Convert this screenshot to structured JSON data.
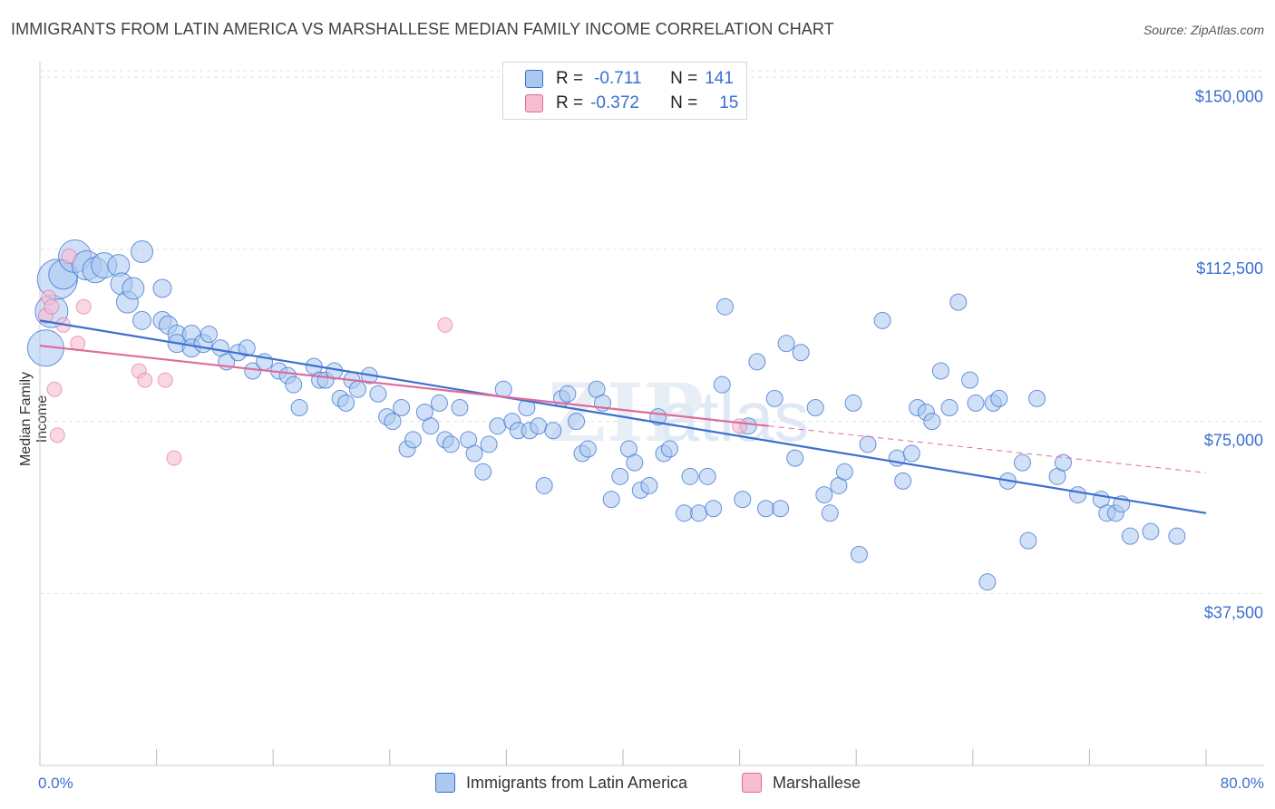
{
  "title": "IMMIGRANTS FROM LATIN AMERICA VS MARSHALLESE MEDIAN FAMILY INCOME CORRELATION CHART",
  "source": "Source: ZipAtlas.com",
  "legend": {
    "row1": {
      "r_label": "R =",
      "r_value": "-0.711",
      "n_label": "N =",
      "n_value": "141"
    },
    "row2": {
      "r_label": "R =",
      "r_value": "-0.372",
      "n_label": "N =",
      "n_value": "15"
    }
  },
  "bottom_legend": {
    "s1": "Immigrants from Latin America",
    "s2": "Marshallese"
  },
  "x_tick_min": "0.0%",
  "x_tick_max": "80.0%",
  "colors": {
    "blue": "#3b6fd0",
    "blue_fill": "#aac8f0",
    "pink": "#e06a9a",
    "pink_fill": "#f6bcd0",
    "grid": "#e0e0e0"
  },
  "chart_data": {
    "type": "scatter",
    "title": "IMMIGRANTS FROM LATIN AMERICA VS MARSHALLESE MEDIAN FAMILY INCOME CORRELATION CHART",
    "xlabel": "",
    "ylabel": "Median Family Income",
    "xlim": [
      0,
      80
    ],
    "ylim": [
      0,
      155000
    ],
    "y_ticks": [
      {
        "v": 37500,
        "label": "$37,500"
      },
      {
        "v": 75000,
        "label": "$75,000"
      },
      {
        "v": 112500,
        "label": "$112,500"
      },
      {
        "v": 150000,
        "label": "$150,000"
      }
    ],
    "series": [
      {
        "name": "Immigrants from Latin America",
        "r": -0.711,
        "n": 141,
        "trend": {
          "x0": 0,
          "y0": 97000,
          "x1": 80,
          "y1": 55000
        },
        "points": [
          [
            0.4,
            91000,
            20
          ],
          [
            0.8,
            99000,
            18
          ],
          [
            1.2,
            106000,
            22
          ],
          [
            1.6,
            107000,
            16
          ],
          [
            2.4,
            111000,
            18
          ],
          [
            3.2,
            109000,
            16
          ],
          [
            3.8,
            108000,
            14
          ],
          [
            4.4,
            109000,
            14
          ],
          [
            5.4,
            109000,
            12
          ],
          [
            5.6,
            105000,
            12
          ],
          [
            6.0,
            101000,
            12
          ],
          [
            6.4,
            104000,
            12
          ],
          [
            7.0,
            112000,
            12
          ],
          [
            7.0,
            97000,
            10
          ],
          [
            8.4,
            97000,
            10
          ],
          [
            8.4,
            104000,
            10
          ],
          [
            8.8,
            96000,
            10
          ],
          [
            9.4,
            94000,
            10
          ],
          [
            9.4,
            92000,
            10
          ],
          [
            10.4,
            94000,
            10
          ],
          [
            10.4,
            91000,
            10
          ],
          [
            11.2,
            92000,
            10
          ],
          [
            11.6,
            94000,
            9
          ],
          [
            12.4,
            91000,
            9
          ],
          [
            12.8,
            88000,
            9
          ],
          [
            13.6,
            90000,
            9
          ],
          [
            14.2,
            91000,
            9
          ],
          [
            14.6,
            86000,
            9
          ],
          [
            15.4,
            88000,
            9
          ],
          [
            16.4,
            86000,
            9
          ],
          [
            17.0,
            85000,
            9
          ],
          [
            17.4,
            83000,
            9
          ],
          [
            17.8,
            78000,
            9
          ],
          [
            18.8,
            87000,
            9
          ],
          [
            19.2,
            84000,
            9
          ],
          [
            19.6,
            84000,
            9
          ],
          [
            20.2,
            86000,
            9
          ],
          [
            20.6,
            80000,
            9
          ],
          [
            21.0,
            79000,
            9
          ],
          [
            21.4,
            84000,
            9
          ],
          [
            21.8,
            82000,
            9
          ],
          [
            22.6,
            85000,
            9
          ],
          [
            23.2,
            81000,
            9
          ],
          [
            23.8,
            76000,
            9
          ],
          [
            24.2,
            75000,
            9
          ],
          [
            24.8,
            78000,
            9
          ],
          [
            25.2,
            69000,
            9
          ],
          [
            25.6,
            71000,
            9
          ],
          [
            26.4,
            77000,
            9
          ],
          [
            26.8,
            74000,
            9
          ],
          [
            27.4,
            79000,
            9
          ],
          [
            27.8,
            71000,
            9
          ],
          [
            28.2,
            70000,
            9
          ],
          [
            28.8,
            78000,
            9
          ],
          [
            29.4,
            71000,
            9
          ],
          [
            29.8,
            68000,
            9
          ],
          [
            30.4,
            64000,
            9
          ],
          [
            30.8,
            70000,
            9
          ],
          [
            31.4,
            74000,
            9
          ],
          [
            31.8,
            82000,
            9
          ],
          [
            32.4,
            75000,
            9
          ],
          [
            32.8,
            73000,
            9
          ],
          [
            33.4,
            78000,
            9
          ],
          [
            33.6,
            73000,
            9
          ],
          [
            34.2,
            74000,
            9
          ],
          [
            34.6,
            61000,
            9
          ],
          [
            35.2,
            73000,
            9
          ],
          [
            35.8,
            80000,
            9
          ],
          [
            36.2,
            81000,
            9
          ],
          [
            36.8,
            75000,
            9
          ],
          [
            37.2,
            68000,
            9
          ],
          [
            37.6,
            69000,
            9
          ],
          [
            38.2,
            82000,
            9
          ],
          [
            38.6,
            79000,
            9
          ],
          [
            39.2,
            58000,
            9
          ],
          [
            39.8,
            63000,
            9
          ],
          [
            40.4,
            69000,
            9
          ],
          [
            40.8,
            66000,
            9
          ],
          [
            41.2,
            60000,
            9
          ],
          [
            41.8,
            61000,
            9
          ],
          [
            42.4,
            76000,
            9
          ],
          [
            42.8,
            68000,
            9
          ],
          [
            43.2,
            69000,
            9
          ],
          [
            44.2,
            55000,
            9
          ],
          [
            44.6,
            63000,
            9
          ],
          [
            45.2,
            55000,
            9
          ],
          [
            45.8,
            63000,
            9
          ],
          [
            46.2,
            56000,
            9
          ],
          [
            46.8,
            83000,
            9
          ],
          [
            47.0,
            100000,
            9
          ],
          [
            48.2,
            58000,
            9
          ],
          [
            48.6,
            74000,
            9
          ],
          [
            49.2,
            88000,
            9
          ],
          [
            49.8,
            56000,
            9
          ],
          [
            50.4,
            80000,
            9
          ],
          [
            50.8,
            56000,
            9
          ],
          [
            51.2,
            92000,
            9
          ],
          [
            51.8,
            67000,
            9
          ],
          [
            52.2,
            90000,
            9
          ],
          [
            53.2,
            78000,
            9
          ],
          [
            53.8,
            59000,
            9
          ],
          [
            54.2,
            55000,
            9
          ],
          [
            54.8,
            61000,
            9
          ],
          [
            55.2,
            64000,
            9
          ],
          [
            55.8,
            79000,
            9
          ],
          [
            56.2,
            46000,
            9
          ],
          [
            56.8,
            70000,
            9
          ],
          [
            57.8,
            97000,
            9
          ],
          [
            58.8,
            67000,
            9
          ],
          [
            59.2,
            62000,
            9
          ],
          [
            59.8,
            68000,
            9
          ],
          [
            60.2,
            78000,
            9
          ],
          [
            60.8,
            77000,
            9
          ],
          [
            61.2,
            75000,
            9
          ],
          [
            61.8,
            86000,
            9
          ],
          [
            62.4,
            78000,
            9
          ],
          [
            63.0,
            101000,
            9
          ],
          [
            63.8,
            84000,
            9
          ],
          [
            64.2,
            79000,
            9
          ],
          [
            65.0,
            40000,
            9
          ],
          [
            65.4,
            79000,
            9
          ],
          [
            65.8,
            80000,
            9
          ],
          [
            66.4,
            62000,
            9
          ],
          [
            67.4,
            66000,
            9
          ],
          [
            67.8,
            49000,
            9
          ],
          [
            68.4,
            80000,
            9
          ],
          [
            69.8,
            63000,
            9
          ],
          [
            70.2,
            66000,
            9
          ],
          [
            71.2,
            59000,
            9
          ],
          [
            72.8,
            58000,
            9
          ],
          [
            73.2,
            55000,
            9
          ],
          [
            73.8,
            55000,
            9
          ],
          [
            74.2,
            57000,
            9
          ],
          [
            74.8,
            50000,
            9
          ],
          [
            76.2,
            51000,
            9
          ],
          [
            78.0,
            50000,
            9
          ]
        ]
      },
      {
        "name": "Marshallese",
        "r": -0.372,
        "n": 15,
        "trend": {
          "x0": 0,
          "y0": 91500,
          "x1": 50,
          "y1": 74000
        },
        "trend_dashed": {
          "x0": 50,
          "y0": 74000,
          "x1": 80,
          "y1": 63800
        },
        "points": [
          [
            0.4,
            98000
          ],
          [
            0.6,
            102000
          ],
          [
            0.8,
            100000
          ],
          [
            1.0,
            82000
          ],
          [
            1.2,
            72000
          ],
          [
            1.6,
            96000
          ],
          [
            2.0,
            111000
          ],
          [
            2.6,
            92000
          ],
          [
            3.0,
            100000
          ],
          [
            6.8,
            86000
          ],
          [
            7.2,
            84000
          ],
          [
            8.6,
            84000
          ],
          [
            9.2,
            67000
          ],
          [
            27.8,
            96000
          ],
          [
            48.0,
            74000
          ]
        ]
      }
    ]
  }
}
